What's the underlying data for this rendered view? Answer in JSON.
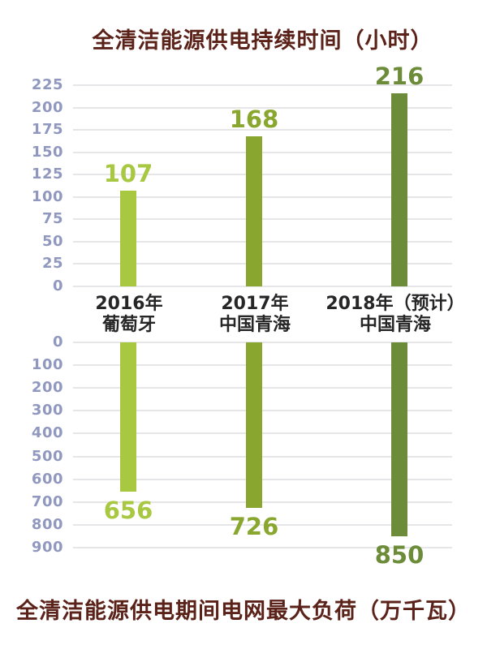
{
  "page": {
    "background": "#ffffff"
  },
  "styles": {
    "title_color": "#5b2219",
    "axis_label_color": "#9098bf",
    "gridline_color": "#e6e6e8",
    "category_label_color": "#262626"
  },
  "chart_data": [
    {
      "type": "bar",
      "title": "全清洁能源供电持续时间（小时）",
      "direction": "up",
      "categories": [
        [
          "2016年",
          "葡萄牙"
        ],
        [
          "2017年",
          "中国青海"
        ],
        [
          "2018年（预计）",
          "中国青海"
        ]
      ],
      "values": [
        107,
        168,
        216
      ],
      "value_labels": [
        "107",
        "168",
        "216"
      ],
      "bar_colors": [
        "#a7c840",
        "#89a72f",
        "#6d8c3a"
      ],
      "ylim": [
        0,
        225
      ],
      "ytick_step": 25,
      "yticks": [
        0,
        25,
        50,
        75,
        100,
        125,
        150,
        175,
        200,
        225
      ],
      "grid": true,
      "legend": "none"
    },
    {
      "type": "bar",
      "title": "全清洁能源供电期间电网最大负荷（万千瓦）",
      "direction": "down",
      "categories": [
        [
          "2016年",
          "葡萄牙"
        ],
        [
          "2017年",
          "中国青海"
        ],
        [
          "2018年（预计）",
          "中国青海"
        ]
      ],
      "values": [
        656,
        726,
        850
      ],
      "value_labels": [
        "656",
        "726",
        "850"
      ],
      "bar_colors": [
        "#a7c840",
        "#89a72f",
        "#6d8c3a"
      ],
      "ylim": [
        0,
        900
      ],
      "ytick_step": 100,
      "yticks": [
        0,
        100,
        200,
        300,
        400,
        500,
        600,
        700,
        800,
        900
      ],
      "grid": true,
      "legend": "none"
    }
  ]
}
